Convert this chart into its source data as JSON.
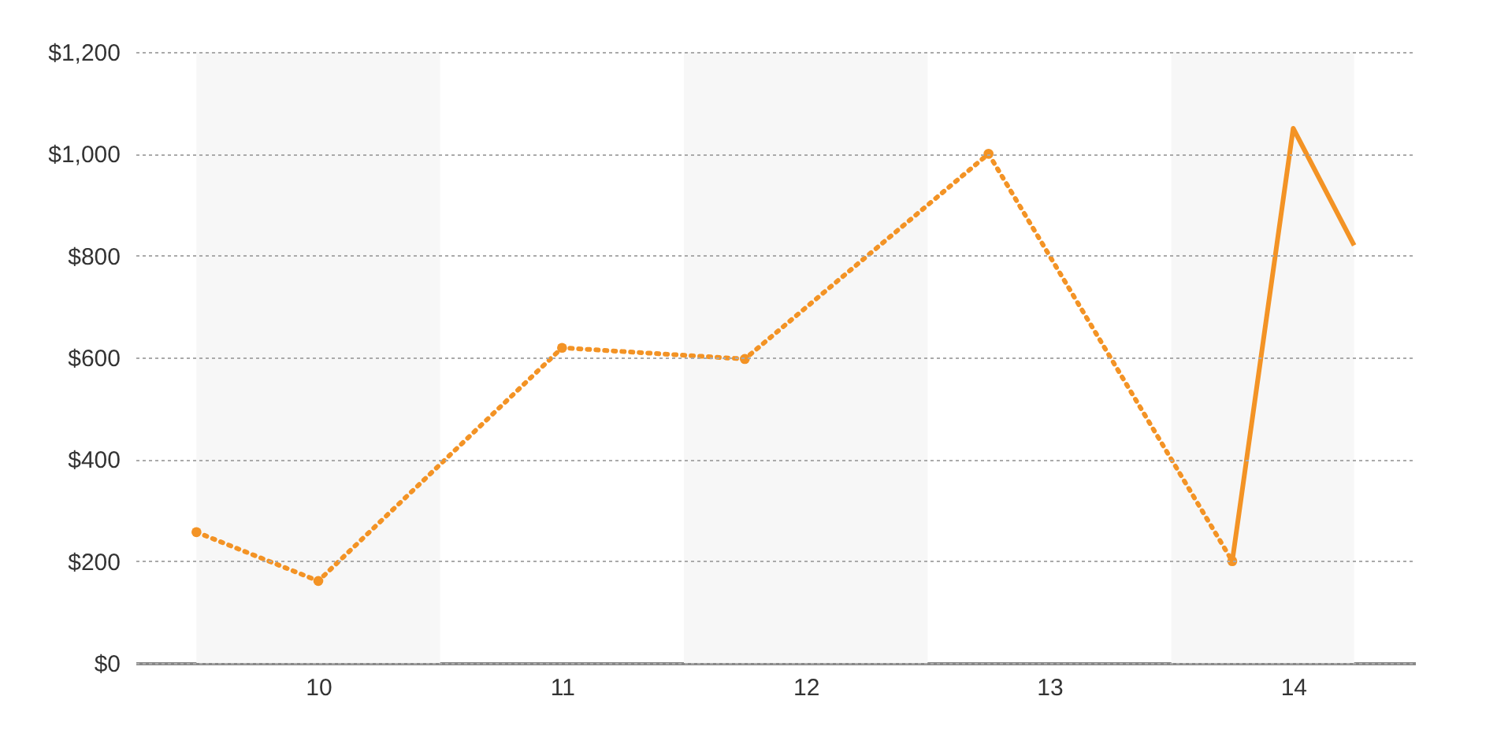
{
  "chart_data": {
    "type": "line",
    "xlim": [
      9.25,
      14.5
    ],
    "xticks": [
      10,
      11,
      12,
      13,
      14
    ],
    "ylim": [
      0,
      1200
    ],
    "yticks": [
      {
        "value": 0,
        "label": "$0"
      },
      {
        "value": 200,
        "label": "$200"
      },
      {
        "value": 400,
        "label": "$400"
      },
      {
        "value": 600,
        "label": "$600"
      },
      {
        "value": 800,
        "label": "$800"
      },
      {
        "value": 1000,
        "label": "$1,000"
      },
      {
        "value": 1200,
        "label": "$1,200"
      }
    ],
    "grid": "y",
    "series": [
      {
        "color": "#f39325",
        "line_style": "dotted",
        "marker": "circle",
        "x": [
          9.5,
          10,
          11,
          11.75,
          12.75,
          13.75
        ],
        "values": [
          257,
          161,
          619,
          597,
          1000,
          200
        ]
      },
      {
        "color": "#f39325",
        "line_style": "solid",
        "marker": "none",
        "x": [
          13.75,
          14,
          14.25
        ],
        "values": [
          200,
          1050,
          820
        ]
      }
    ],
    "bands": [
      {
        "axis": "x",
        "from": 9.5,
        "to": 10.5,
        "color": "#f7f7f7"
      },
      {
        "axis": "x",
        "from": 11.5,
        "to": 12.5,
        "color": "#f7f7f7"
      },
      {
        "axis": "x",
        "from": 13.5,
        "to": 14.25,
        "color": "#f7f7f7"
      }
    ]
  }
}
